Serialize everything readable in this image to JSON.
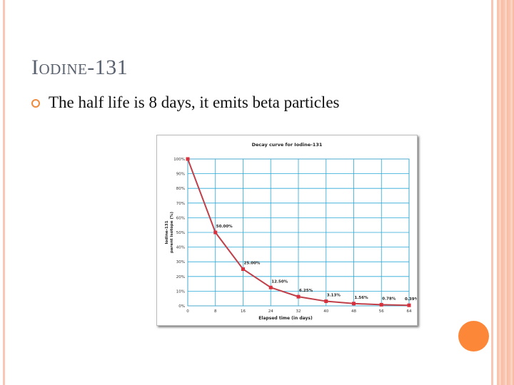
{
  "slide": {
    "title": "Iodine-131",
    "bullet": "The half life is 8 days, it emits beta particles",
    "accent_color": "#fd8738"
  },
  "chart_data": {
    "type": "line",
    "title": "Decay curve for Iodine-131",
    "xlabel": "Elapsed time (in days)",
    "ylabel_line1": "Iodine-131",
    "ylabel_line2": "parent isotope (%)",
    "x": [
      0,
      8,
      16,
      24,
      32,
      40,
      48,
      56,
      64
    ],
    "values": [
      100,
      50,
      25,
      12.5,
      6.25,
      3.13,
      1.56,
      0.78,
      0.39
    ],
    "data_labels": [
      "",
      "50.00%",
      "25.00%",
      "12.50%",
      "6.25%",
      "3.13%",
      "1.56%",
      "0.78%",
      "0.39%"
    ],
    "xticks": [
      "0",
      "8",
      "16",
      "24",
      "32",
      "40",
      "48",
      "56",
      "64"
    ],
    "yticks": [
      "0%",
      "10%",
      "20%",
      "30%",
      "40%",
      "50%",
      "60%",
      "70%",
      "80%",
      "90%",
      "100%"
    ],
    "xlim": [
      0,
      64
    ],
    "ylim": [
      0,
      100
    ],
    "grid": true,
    "line_color": "#c0404a",
    "marker_color": "#d8303c",
    "grid_color": "#29a8d8"
  }
}
